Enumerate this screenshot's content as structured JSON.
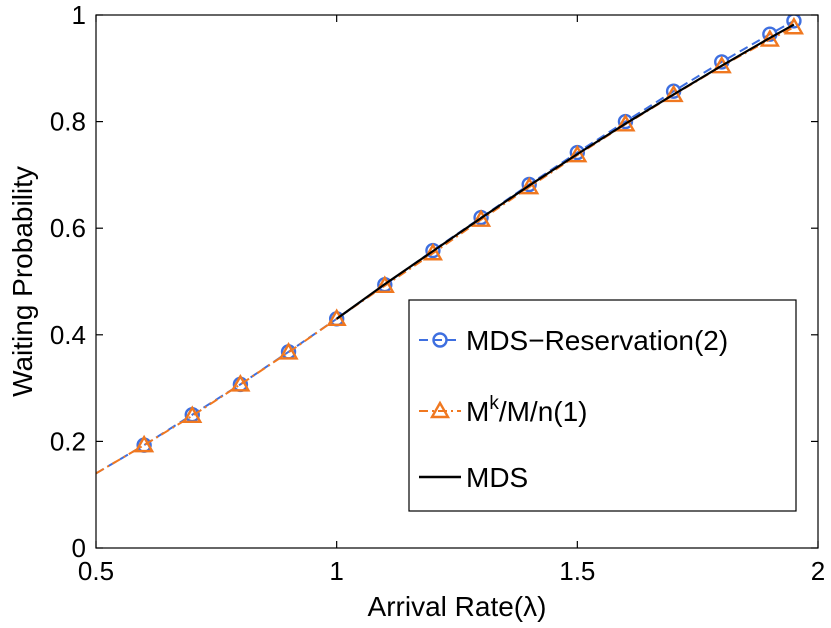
{
  "chart_data": {
    "type": "line",
    "title": "",
    "xlabel": "Arrival Rate(λ)",
    "ylabel": "Waiting Probability",
    "xlim": [
      0.5,
      2
    ],
    "ylim": [
      0,
      1
    ],
    "xticks": [
      0.5,
      1,
      1.5,
      2
    ],
    "xtick_labels": [
      "0.5",
      "1",
      "1.5",
      "2"
    ],
    "yticks": [
      0,
      0.2,
      0.4,
      0.6,
      0.8,
      1
    ],
    "ytick_labels": [
      "0",
      "0.2",
      "0.4",
      "0.6",
      "0.8",
      "1"
    ],
    "grid": false,
    "legend_position": "center-right",
    "series": [
      {
        "name": "MDS−Reservation(2)",
        "color": "#3e6fe0",
        "line_style": "dashed",
        "marker": "circle",
        "x": [
          0.5,
          0.6,
          0.7,
          0.8,
          0.9,
          1.0,
          1.1,
          1.2,
          1.3,
          1.4,
          1.5,
          1.6,
          1.7,
          1.8,
          1.9,
          1.95
        ],
        "values": [
          0.14,
          0.193,
          0.25,
          0.307,
          0.368,
          0.43,
          0.494,
          0.558,
          0.62,
          0.682,
          0.742,
          0.8,
          0.857,
          0.912,
          0.964,
          0.989
        ]
      },
      {
        "name_main": "M",
        "name_sup": "k",
        "name_rest": "/M/n(1)",
        "name": "Mk/M/n(1)",
        "color": "#f07820",
        "line_style": "dashdot",
        "marker": "triangle",
        "x": [
          0.5,
          0.6,
          0.7,
          0.8,
          0.9,
          1.0,
          1.1,
          1.2,
          1.3,
          1.4,
          1.5,
          1.6,
          1.7,
          1.8,
          1.9,
          1.95
        ],
        "values": [
          0.14,
          0.193,
          0.248,
          0.307,
          0.367,
          0.43,
          0.492,
          0.553,
          0.616,
          0.677,
          0.737,
          0.795,
          0.85,
          0.904,
          0.954,
          0.977
        ]
      },
      {
        "name": "MDS",
        "color": "#000000",
        "line_style": "solid",
        "marker": "none",
        "x": [
          1.0,
          1.1,
          1.2,
          1.3,
          1.4,
          1.5,
          1.6,
          1.7,
          1.8,
          1.9,
          1.95
        ],
        "values": [
          0.43,
          0.495,
          0.557,
          0.619,
          0.68,
          0.739,
          0.796,
          0.851,
          0.905,
          0.957,
          0.982
        ]
      }
    ]
  }
}
